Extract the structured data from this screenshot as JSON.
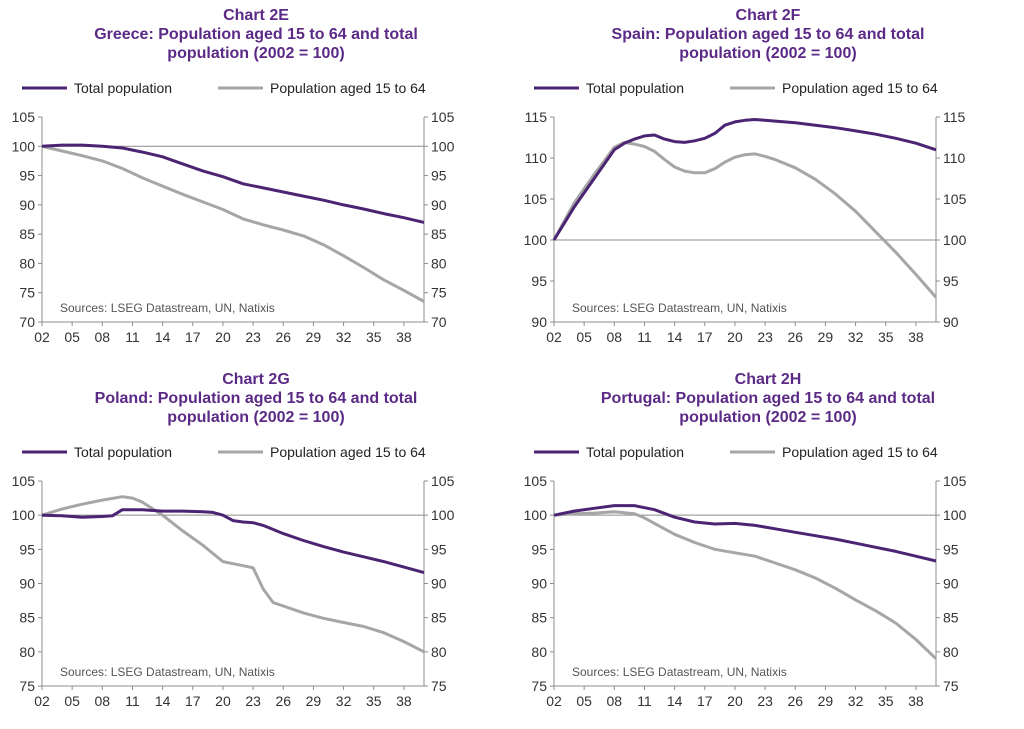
{
  "colors": {
    "title": "#5b2a86",
    "total_population": "#4b2473",
    "aged_15_64": "#a6a6a6",
    "axis": "#8c8c8c",
    "baseline": "#8c8c8c",
    "text": "#333333"
  },
  "chart_data": [
    {
      "type": "line",
      "chart_label": "Chart 2E",
      "title_line_1": "Greece: Population aged 15 to 64 and total",
      "title_line_2": "population (2002 = 100)",
      "source": "Sources: LSEG Datastream, UN, Natixis",
      "ylim": [
        70,
        105
      ],
      "yticks": [
        "105",
        "100",
        "95",
        "90",
        "85",
        "80",
        "75",
        "70"
      ],
      "ytick_values": [
        105,
        100,
        95,
        90,
        85,
        80,
        75,
        70
      ],
      "xlim": [
        2002,
        2040
      ],
      "xtick_labels": [
        "02",
        "05",
        "08",
        "11",
        "14",
        "17",
        "20",
        "23",
        "26",
        "29",
        "32",
        "35",
        "38"
      ],
      "xtick_values": [
        2002,
        2005,
        2008,
        2011,
        2014,
        2017,
        2020,
        2023,
        2026,
        2029,
        2032,
        2035,
        2038
      ],
      "baseline": 100,
      "legend_position": "top",
      "series": [
        {
          "name": "Total population",
          "x": [
            2002,
            2004,
            2006,
            2008,
            2010,
            2012,
            2014,
            2016,
            2018,
            2020,
            2022,
            2024,
            2026,
            2028,
            2030,
            2032,
            2034,
            2036,
            2038,
            2040
          ],
          "values": [
            100,
            100.2,
            100.2,
            100,
            99.7,
            99,
            98.2,
            97,
            95.8,
            94.8,
            93.6,
            92.9,
            92.2,
            91.5,
            90.8,
            90,
            89.3,
            88.5,
            87.8,
            87
          ]
        },
        {
          "name": "Population aged 15 to 64",
          "x": [
            2002,
            2004,
            2006,
            2008,
            2010,
            2012,
            2014,
            2016,
            2018,
            2020,
            2022,
            2024,
            2026,
            2028,
            2030,
            2032,
            2034,
            2036,
            2038,
            2040
          ],
          "values": [
            100,
            99.2,
            98.4,
            97.5,
            96.2,
            94.6,
            93.2,
            91.8,
            90.5,
            89.2,
            87.6,
            86.6,
            85.7,
            84.7,
            83.2,
            81.3,
            79.3,
            77.2,
            75.4,
            73.5
          ]
        }
      ]
    },
    {
      "type": "line",
      "chart_label": "Chart 2F",
      "title_line_1": "Spain: Population aged 15 to 64 and total",
      "title_line_2": "population (2002 = 100)",
      "source": "Sources: LSEG Datastream, UN, Natixis",
      "ylim": [
        90,
        115
      ],
      "yticks": [
        "115",
        "110",
        "105",
        "100",
        "95",
        "90"
      ],
      "ytick_values": [
        115,
        110,
        105,
        100,
        95,
        90
      ],
      "xlim": [
        2002,
        2040
      ],
      "xtick_labels": [
        "02",
        "05",
        "08",
        "11",
        "14",
        "17",
        "20",
        "23",
        "26",
        "29",
        "32",
        "35",
        "38"
      ],
      "xtick_values": [
        2002,
        2005,
        2008,
        2011,
        2014,
        2017,
        2020,
        2023,
        2026,
        2029,
        2032,
        2035,
        2038
      ],
      "baseline": 100,
      "legend_position": "top",
      "series": [
        {
          "name": "Total population",
          "x": [
            2002,
            2004,
            2006,
            2008,
            2009,
            2010,
            2011,
            2012,
            2013,
            2014,
            2015,
            2016,
            2017,
            2018,
            2019,
            2020,
            2021,
            2022,
            2024,
            2026,
            2028,
            2030,
            2032,
            2034,
            2036,
            2038,
            2040
          ],
          "values": [
            100,
            104,
            107.5,
            111,
            111.8,
            112.3,
            112.7,
            112.8,
            112.3,
            112,
            111.9,
            112.1,
            112.4,
            113,
            114,
            114.4,
            114.6,
            114.7,
            114.5,
            114.3,
            114,
            113.7,
            113.3,
            112.9,
            112.4,
            111.8,
            111
          ]
        },
        {
          "name": "Population aged 15 to 64",
          "x": [
            2002,
            2004,
            2006,
            2008,
            2009,
            2010,
            2011,
            2012,
            2013,
            2014,
            2015,
            2016,
            2017,
            2018,
            2019,
            2020,
            2021,
            2022,
            2023,
            2024,
            2026,
            2028,
            2030,
            2032,
            2034,
            2036,
            2038,
            2040
          ],
          "values": [
            100,
            104.5,
            108,
            111.3,
            111.9,
            111.7,
            111.4,
            110.8,
            109.8,
            108.9,
            108.4,
            108.2,
            108.2,
            108.7,
            109.5,
            110.1,
            110.4,
            110.5,
            110.2,
            109.8,
            108.8,
            107.4,
            105.6,
            103.5,
            101,
            98.5,
            95.8,
            93
          ]
        }
      ]
    },
    {
      "type": "line",
      "chart_label": "Chart 2G",
      "title_line_1": "Poland: Population aged 15 to 64 and total",
      "title_line_2": "population (2002 = 100)",
      "source": "Sources: LSEG Datastream, UN, Natixis",
      "ylim": [
        75,
        105
      ],
      "yticks": [
        "105",
        "100",
        "95",
        "90",
        "85",
        "80",
        "75"
      ],
      "ytick_values": [
        105,
        100,
        95,
        90,
        85,
        80,
        75
      ],
      "xlim": [
        2002,
        2040
      ],
      "xtick_labels": [
        "02",
        "05",
        "08",
        "11",
        "14",
        "17",
        "20",
        "23",
        "26",
        "29",
        "32",
        "35",
        "38"
      ],
      "xtick_values": [
        2002,
        2005,
        2008,
        2011,
        2014,
        2017,
        2020,
        2023,
        2026,
        2029,
        2032,
        2035,
        2038
      ],
      "baseline": 100,
      "legend_position": "top",
      "series": [
        {
          "name": "Total population",
          "x": [
            2002,
            2004,
            2006,
            2008,
            2009,
            2010,
            2012,
            2014,
            2016,
            2018,
            2019,
            2020,
            2021,
            2022,
            2023,
            2024,
            2026,
            2028,
            2030,
            2032,
            2034,
            2036,
            2038,
            2040
          ],
          "values": [
            100,
            99.9,
            99.7,
            99.8,
            99.9,
            100.8,
            100.8,
            100.6,
            100.6,
            100.5,
            100.4,
            100,
            99.2,
            99,
            98.9,
            98.5,
            97.3,
            96.3,
            95.4,
            94.6,
            93.9,
            93.2,
            92.4,
            91.6
          ]
        },
        {
          "name": "Population aged 15 to 64",
          "x": [
            2002,
            2004,
            2006,
            2008,
            2010,
            2011,
            2012,
            2014,
            2016,
            2018,
            2020,
            2021,
            2022,
            2023,
            2024,
            2025,
            2026,
            2028,
            2030,
            2032,
            2034,
            2036,
            2038,
            2040
          ],
          "values": [
            100,
            100.9,
            101.6,
            102.2,
            102.7,
            102.5,
            101.9,
            100,
            97.7,
            95.6,
            93.2,
            92.9,
            92.6,
            92.3,
            89.2,
            87.2,
            86.7,
            85.7,
            84.9,
            84.3,
            83.7,
            82.8,
            81.5,
            80
          ]
        }
      ]
    },
    {
      "type": "line",
      "chart_label": "Chart 2H",
      "title_line_1": "Portugal: Population aged 15 to 64 and total",
      "title_line_2": "population (2002 = 100)",
      "source": "Sources: LSEG Datastream, UN, Natixis",
      "ylim": [
        75,
        105
      ],
      "yticks": [
        "105",
        "100",
        "95",
        "90",
        "85",
        "80",
        "75"
      ],
      "ytick_values": [
        105,
        100,
        95,
        90,
        85,
        80,
        75
      ],
      "xlim": [
        2002,
        2040
      ],
      "xtick_labels": [
        "02",
        "05",
        "08",
        "11",
        "14",
        "17",
        "20",
        "23",
        "26",
        "29",
        "32",
        "35",
        "38"
      ],
      "xtick_values": [
        2002,
        2005,
        2008,
        2011,
        2014,
        2017,
        2020,
        2023,
        2026,
        2029,
        2032,
        2035,
        2038
      ],
      "baseline": 100,
      "legend_position": "top",
      "series": [
        {
          "name": "Total population",
          "x": [
            2002,
            2004,
            2006,
            2008,
            2010,
            2012,
            2014,
            2016,
            2018,
            2020,
            2022,
            2024,
            2026,
            2028,
            2030,
            2032,
            2034,
            2036,
            2038,
            2040
          ],
          "values": [
            100,
            100.6,
            101,
            101.4,
            101.4,
            100.8,
            99.7,
            99,
            98.7,
            98.8,
            98.5,
            98,
            97.5,
            97,
            96.5,
            95.9,
            95.3,
            94.7,
            94,
            93.3
          ]
        },
        {
          "name": "Population aged 15 to 64",
          "x": [
            2002,
            2004,
            2006,
            2008,
            2010,
            2011,
            2012,
            2014,
            2016,
            2018,
            2020,
            2022,
            2024,
            2026,
            2028,
            2030,
            2032,
            2034,
            2036,
            2038,
            2040
          ],
          "values": [
            100,
            100.2,
            100.3,
            100.5,
            100.2,
            99.6,
            98.8,
            97.2,
            96,
            95,
            94.5,
            94,
            93,
            92,
            90.8,
            89.3,
            87.6,
            86,
            84.2,
            81.8,
            79
          ]
        }
      ]
    }
  ]
}
